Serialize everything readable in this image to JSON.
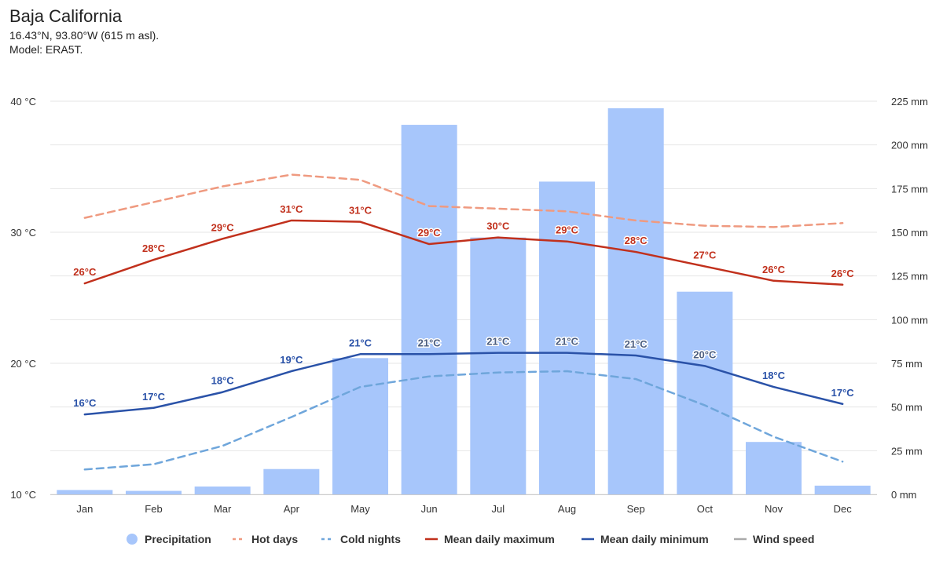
{
  "header": {
    "title": "Baja California",
    "coords": "16.43°N, 93.80°W (615 m asl).",
    "model": "Model: ERA5T."
  },
  "colors": {
    "precipitation": "#a7c6fb",
    "hot_days": "#ef9a80",
    "cold_nights": "#6fa6db",
    "mean_max": "#c1301c",
    "mean_min": "#2a52a8",
    "wind_speed": "#aaaaaa",
    "grid": "#e6e6e6"
  },
  "chart_data": {
    "type": "bar",
    "categories": [
      "Jan",
      "Feb",
      "Mar",
      "Apr",
      "May",
      "Jun",
      "Jul",
      "Aug",
      "Sep",
      "Oct",
      "Nov",
      "Dec"
    ],
    "y_left": {
      "ticks": [
        "40 °C",
        "30 °C",
        "20 °C",
        "10 °C"
      ],
      "range": [
        10,
        40
      ]
    },
    "y_right": {
      "ticks": [
        "225 mm",
        "200 mm",
        "175 mm",
        "150 mm",
        "125 mm",
        "100 mm",
        "75 mm",
        "50 mm",
        "25 mm",
        "0 mm"
      ],
      "range": [
        0,
        225
      ]
    },
    "series": [
      {
        "name": "Precipitation",
        "kind": "bar",
        "axis": "right",
        "values": [
          2.5,
          2,
          4.5,
          14.5,
          78,
          211.5,
          147,
          179,
          221,
          116,
          30,
          5
        ]
      },
      {
        "name": "Hot days",
        "kind": "dashed-line",
        "axis": "left",
        "values": [
          31.1,
          32.3,
          33.5,
          34.4,
          34.0,
          32.0,
          31.8,
          31.6,
          30.9,
          30.5,
          30.4,
          30.7
        ]
      },
      {
        "name": "Cold nights",
        "kind": "dashed-line",
        "axis": "left",
        "values": [
          11.9,
          12.3,
          13.7,
          15.9,
          18.2,
          19.0,
          19.3,
          19.4,
          18.8,
          16.8,
          14.4,
          12.5
        ]
      },
      {
        "name": "Mean daily maximum",
        "kind": "line",
        "axis": "left",
        "values": [
          26.1,
          27.9,
          29.5,
          30.9,
          30.8,
          29.1,
          29.6,
          29.3,
          28.5,
          27.4,
          26.3,
          26.0
        ],
        "labels": [
          "26°C",
          "28°C",
          "29°C",
          "31°C",
          "31°C",
          "29°C",
          "30°C",
          "29°C",
          "28°C",
          "27°C",
          "26°C",
          "26°C"
        ]
      },
      {
        "name": "Mean daily minimum",
        "kind": "line",
        "axis": "left",
        "values": [
          16.1,
          16.6,
          17.8,
          19.4,
          20.7,
          20.7,
          20.8,
          20.8,
          20.6,
          19.8,
          18.2,
          16.9
        ],
        "labels": [
          "16°C",
          "17°C",
          "18°C",
          "19°C",
          "21°C",
          "21°C",
          "21°C",
          "21°C",
          "21°C",
          "20°C",
          "18°C",
          "17°C"
        ]
      }
    ],
    "legend": [
      "Precipitation",
      "Hot days",
      "Cold nights",
      "Mean daily maximum",
      "Mean daily minimum",
      "Wind speed"
    ],
    "legend_disabled": [
      "Wind speed"
    ],
    "legend_position": "bottom-center",
    "grid": true
  }
}
